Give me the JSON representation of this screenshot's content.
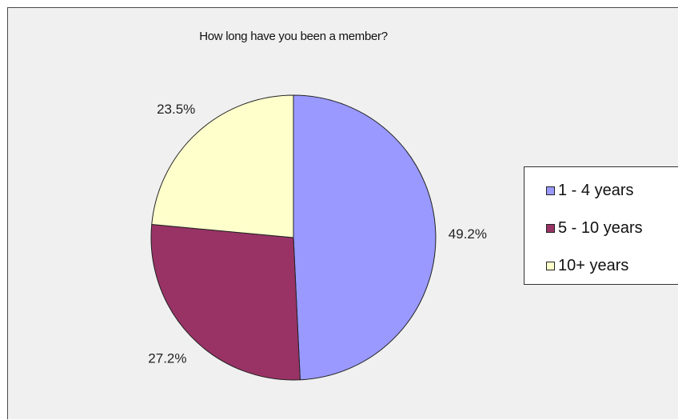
{
  "chart_data": {
    "type": "pie",
    "title": "How long have you been a member?",
    "categories": [
      "1 - 4 years",
      "5 - 10 years",
      "10+ years"
    ],
    "values": [
      49.2,
      27.2,
      23.5
    ],
    "value_labels": [
      "49.2%",
      "27.2%",
      "23.5%"
    ],
    "colors": [
      "#9999ff",
      "#993366",
      "#ffffcc"
    ],
    "start_angle_deg": 0,
    "direction": "clockwise",
    "legend_position": "right"
  }
}
